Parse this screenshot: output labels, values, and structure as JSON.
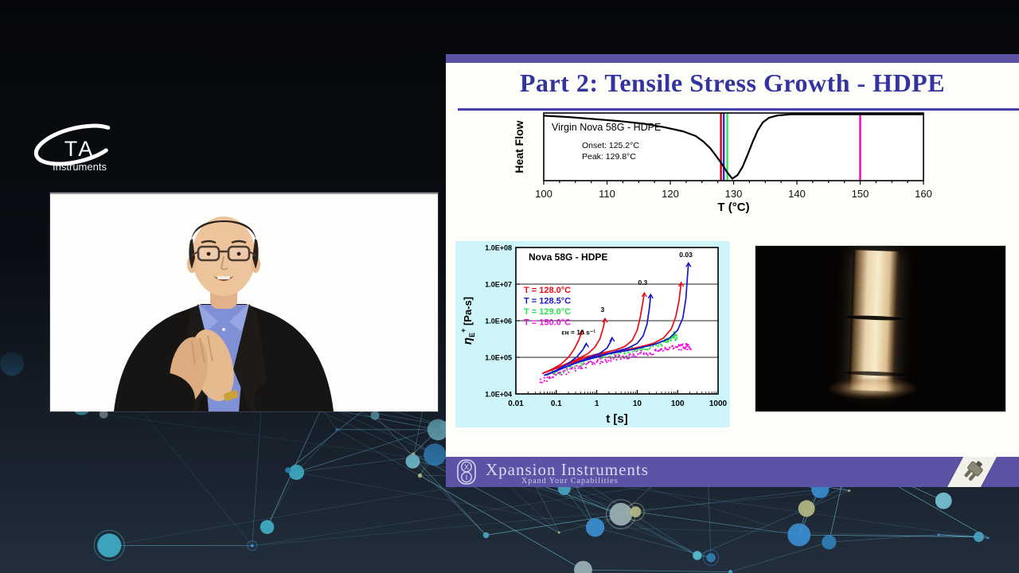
{
  "ta_logo": {
    "text": "TA",
    "subtext": "Instruments"
  },
  "slide": {
    "title": "Part 2: Tensile Stress Growth - HDPE",
    "footer": {
      "brand": "Xpansion Instruments",
      "tagline": "Xpand Your Capabilities"
    }
  },
  "chart_data": [
    {
      "type": "line",
      "name": "dsc-melting-curve",
      "title": "Virgin Nova 58G - HDPE",
      "annotations": {
        "onset": "Onset: 125.2°C",
        "peak": "Peak: 129.8°C"
      },
      "xlabel": "T (°C)",
      "ylabel": "Heat Flow",
      "xlim": [
        100,
        160
      ],
      "xticks": [
        100,
        110,
        120,
        130,
        140,
        150,
        160
      ],
      "grid": false,
      "curve_T_depth": [
        [
          100,
          0.04
        ],
        [
          104,
          0.06
        ],
        [
          108,
          0.09
        ],
        [
          112,
          0.12
        ],
        [
          116,
          0.16
        ],
        [
          119,
          0.21
        ],
        [
          122,
          0.27
        ],
        [
          124,
          0.34
        ],
        [
          125.2,
          0.42
        ],
        [
          126.3,
          0.52
        ],
        [
          127.2,
          0.63
        ],
        [
          128.2,
          0.76
        ],
        [
          129.0,
          0.88
        ],
        [
          129.8,
          0.97
        ],
        [
          130.6,
          0.92
        ],
        [
          131.4,
          0.8
        ],
        [
          132.2,
          0.62
        ],
        [
          133.0,
          0.43
        ],
        [
          133.8,
          0.26
        ],
        [
          134.6,
          0.14
        ],
        [
          135.6,
          0.07
        ],
        [
          137,
          0.035
        ],
        [
          139,
          0.02
        ],
        [
          144,
          0.02
        ],
        [
          150,
          0.02
        ],
        [
          160,
          0.02
        ]
      ],
      "markers": [
        {
          "T": 128.0,
          "color": "#d10010"
        },
        {
          "T": 128.45,
          "color": "#2a2ad8"
        },
        {
          "T": 129.0,
          "color": "#35e555"
        },
        {
          "T": 150.0,
          "color": "#ee00cc"
        }
      ]
    },
    {
      "type": "line",
      "name": "tensile-stress-growth",
      "title": "Nova 58G - HDPE",
      "xlabel": "t [s]",
      "ylabel": "ηE+ [Pa-s]",
      "xlim": [
        0.01,
        1000
      ],
      "ylim": [
        10000,
        100000000
      ],
      "xticks": [
        "0.01",
        "0.1",
        "1",
        "10",
        "100",
        "1000"
      ],
      "yticks": [
        "1.0E+04",
        "1.0E+05",
        "1.0E+06",
        "1.0E+07",
        "1.0E+08"
      ],
      "grid": true,
      "legend_position": "upper-left-inside",
      "legend": [
        {
          "label": "T = 128.0°C",
          "color": "#e60d18"
        },
        {
          "label": "T = 128.5°C",
          "color": "#1515cc"
        },
        {
          "label": "T = 129.0°C",
          "color": "#2ee04e"
        },
        {
          "label": "T = 150.0°C",
          "color": "#f013dd"
        }
      ],
      "annotations": [
        {
          "text": "0.03",
          "t": 110,
          "v": 55000000
        },
        {
          "text": "0.3",
          "t": 10.5,
          "v": 9500000
        },
        {
          "text": "3",
          "t": 1.25,
          "v": 1750000
        },
        {
          "text": "εʜ = 10 s⁻¹",
          "t": 0.135,
          "v": 420000
        }
      ],
      "series": [
        {
          "name": "128.0C rate 10",
          "color": "#e60d18",
          "style": "line",
          "points": [
            [
              0.045,
              36000
            ],
            [
              0.08,
              48000
            ],
            [
              0.13,
              65000
            ],
            [
              0.2,
              100000
            ],
            [
              0.28,
              170000
            ],
            [
              0.36,
              300000
            ],
            [
              0.43,
              520000
            ]
          ]
        },
        {
          "name": "128.0C rate 3",
          "color": "#e60d18",
          "style": "line",
          "points": [
            [
              0.045,
              36000
            ],
            [
              0.12,
              55000
            ],
            [
              0.3,
              85000
            ],
            [
              0.6,
              125000
            ],
            [
              0.9,
              190000
            ],
            [
              1.2,
              320000
            ],
            [
              1.45,
              650000
            ],
            [
              1.6,
              1100000
            ]
          ]
        },
        {
          "name": "128.0C rate 0.3",
          "color": "#e60d18",
          "style": "line",
          "points": [
            [
              0.05,
              38000
            ],
            [
              0.15,
              60000
            ],
            [
              0.5,
              100000
            ],
            [
              1.5,
              135000
            ],
            [
              3,
              160000
            ],
            [
              5,
              200000
            ],
            [
              7.5,
              290000
            ],
            [
              10,
              550000
            ],
            [
              12,
              1300000
            ],
            [
              13.8,
              3200000
            ],
            [
              15,
              5500000
            ]
          ]
        },
        {
          "name": "128.0C rate 0.03",
          "color": "#e60d18",
          "style": "line",
          "points": [
            [
              0.05,
              38000
            ],
            [
              0.2,
              65000
            ],
            [
              1,
              115000
            ],
            [
              4,
              150000
            ],
            [
              10,
              185000
            ],
            [
              25,
              240000
            ],
            [
              45,
              340000
            ],
            [
              70,
              600000
            ],
            [
              90,
              1300000
            ],
            [
              108,
              3500000
            ],
            [
              122,
              10500000
            ]
          ]
        },
        {
          "name": "128.5C rate 10",
          "color": "#1515cc",
          "style": "line",
          "points": [
            [
              0.05,
              32000
            ],
            [
              0.1,
              44000
            ],
            [
              0.2,
              68000
            ],
            [
              0.33,
              105000
            ],
            [
              0.45,
              160000
            ],
            [
              0.55,
              230000
            ]
          ]
        },
        {
          "name": "128.5C rate 3",
          "color": "#1515cc",
          "style": "line",
          "points": [
            [
              0.05,
              32000
            ],
            [
              0.2,
              58000
            ],
            [
              0.6,
              95000
            ],
            [
              1.2,
              130000
            ],
            [
              1.8,
              180000
            ],
            [
              2.2,
              270000
            ],
            [
              2.4,
              330000
            ]
          ]
        },
        {
          "name": "128.5C rate 0.3",
          "color": "#1515cc",
          "style": "line",
          "points": [
            [
              0.06,
              34000
            ],
            [
              0.3,
              70000
            ],
            [
              1,
              105000
            ],
            [
              3,
              145000
            ],
            [
              6,
              180000
            ],
            [
              10,
              240000
            ],
            [
              14,
              380000
            ],
            [
              17.5,
              800000
            ],
            [
              20,
              2200000
            ],
            [
              21.5,
              5000000
            ]
          ]
        },
        {
          "name": "128.5C rate 0.03",
          "color": "#1515cc",
          "style": "line",
          "points": [
            [
              0.06,
              34000
            ],
            [
              0.3,
              70000
            ],
            [
              2,
              125000
            ],
            [
              8,
              165000
            ],
            [
              25,
              220000
            ],
            [
              60,
              320000
            ],
            [
              100,
              550000
            ],
            [
              135,
              1200000
            ],
            [
              160,
              4000000
            ],
            [
              175,
              16000000
            ],
            [
              185,
              36000000
            ]
          ]
        },
        {
          "name": "129.0C",
          "color": "#2ee04e",
          "style": "scatter",
          "points": [
            [
              0.06,
              33000
            ],
            [
              0.15,
              46000
            ],
            [
              0.4,
              70000
            ],
            [
              1,
              100000
            ],
            [
              3,
              135000
            ],
            [
              8,
              160000
            ],
            [
              20,
              195000
            ],
            [
              45,
              250000
            ],
            [
              70,
              330000
            ],
            [
              85,
              420000
            ],
            [
              95,
              320000
            ]
          ]
        },
        {
          "name": "150.0C",
          "color": "#f013dd",
          "style": "scatter",
          "points": [
            [
              0.04,
              21000
            ],
            [
              0.1,
              31000
            ],
            [
              0.3,
              50000
            ],
            [
              0.8,
              70000
            ],
            [
              2,
              90000
            ],
            [
              6,
              110000
            ],
            [
              15,
              130000
            ],
            [
              40,
              155000
            ],
            [
              90,
              180000
            ],
            [
              150,
              200000
            ],
            [
              210,
              190000
            ]
          ]
        }
      ]
    }
  ]
}
